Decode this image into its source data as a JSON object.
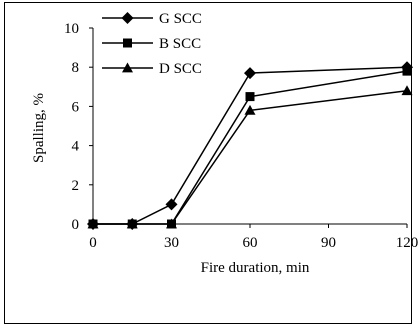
{
  "chart_data": {
    "type": "line",
    "title": "",
    "xlabel": "Fire duration, min",
    "ylabel": "Spalling, %",
    "xlim": [
      0,
      120
    ],
    "ylim": [
      0,
      10
    ],
    "x_ticks": [
      "0",
      "30",
      "60",
      "90",
      "120"
    ],
    "y_ticks": [
      "0",
      "2",
      "4",
      "6",
      "8",
      "10"
    ],
    "legend_position": "top-left",
    "grid": false,
    "series": [
      {
        "name": "G SCC",
        "marker": "diamond",
        "x": [
          0,
          15,
          30,
          60,
          120
        ],
        "y": [
          0,
          0,
          1.0,
          7.7,
          8.0
        ]
      },
      {
        "name": "B SCC",
        "marker": "square",
        "x": [
          0,
          15,
          30,
          60,
          120
        ],
        "y": [
          0,
          0,
          0,
          6.5,
          7.8
        ]
      },
      {
        "name": "D SCC",
        "marker": "triangle",
        "x": [
          0,
          15,
          30,
          60,
          120
        ],
        "y": [
          0,
          0,
          0,
          5.8,
          6.8
        ]
      }
    ]
  }
}
